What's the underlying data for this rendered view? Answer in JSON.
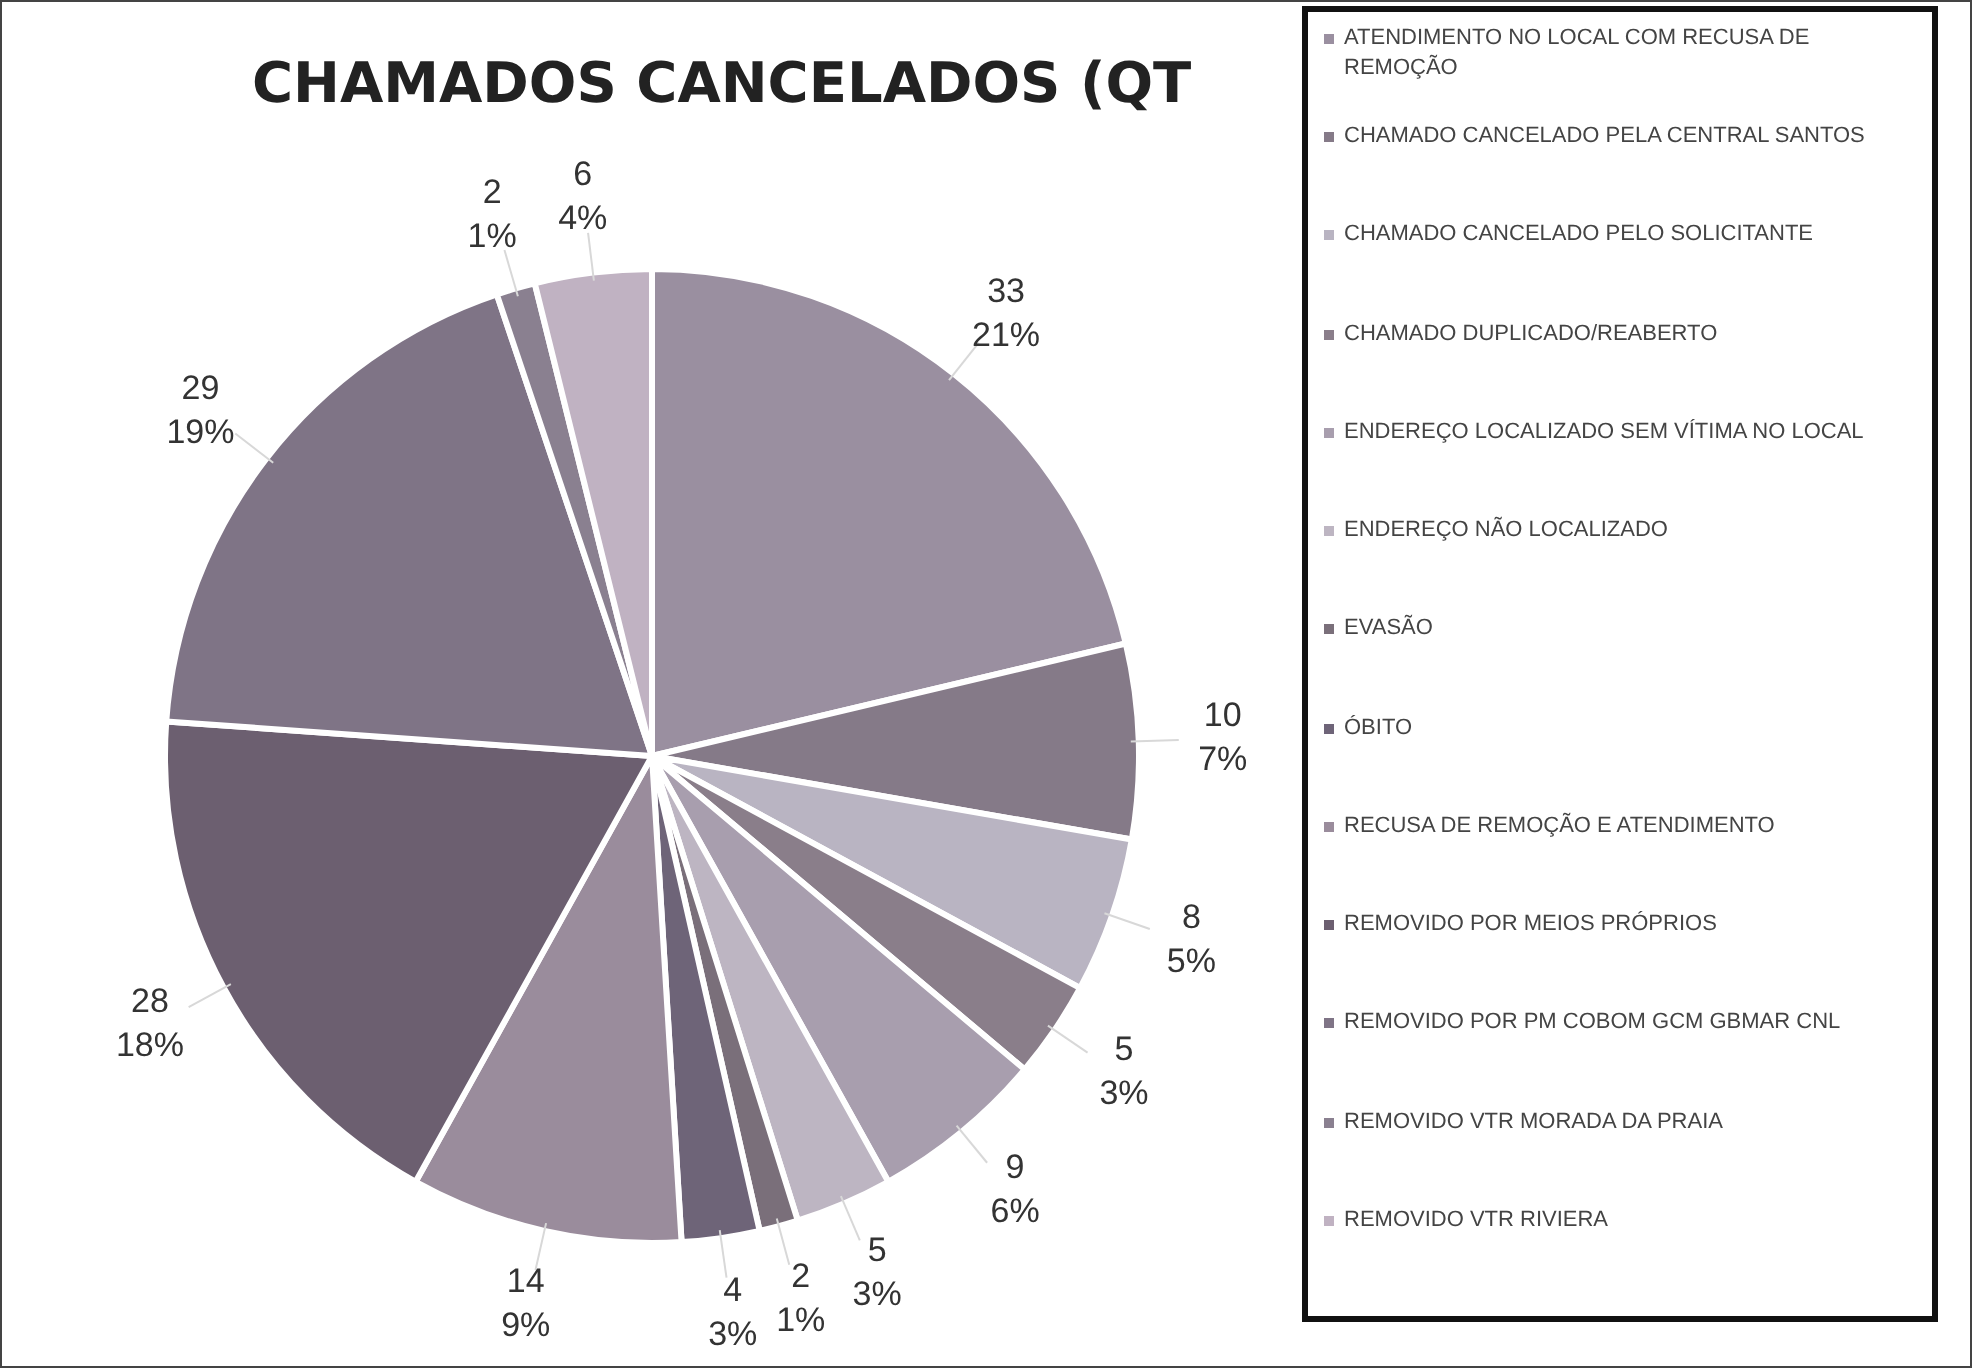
{
  "chart_data": {
    "type": "pie",
    "title": "CHAMADOS CANCELADOS (QT",
    "categories": [
      "ATENDIMENTO NO LOCAL COM RECUSA DE REMOÇÃO",
      "CHAMADO CANCELADO PELA CENTRAL SANTOS",
      "CHAMADO CANCELADO PELO SOLICITANTE",
      "CHAMADO DUPLICADO/REABERTO",
      "ENDEREÇO LOCALIZADO SEM VÍTIMA NO LOCAL",
      "ENDEREÇO NÃO LOCALIZADO",
      "EVASÃO",
      "ÓBITO",
      "RECUSA DE REMOÇÃO E ATENDIMENTO",
      "REMOVIDO POR MEIOS PRÓPRIOS",
      "REMOVIDO POR PM COBOM GCM GBMAR CNL",
      "REMOVIDO VTR MORADA DA PRAIA",
      "REMOVIDO VTR RIVIERA"
    ],
    "values": [
      33,
      10,
      8,
      5,
      9,
      5,
      2,
      4,
      14,
      28,
      29,
      2,
      6
    ],
    "value_labels": [
      "33\n21%",
      "10\n7%",
      "8\n5%",
      "5\n3%",
      "9\n6%",
      "5\n3%",
      "2\n1%",
      "4\n3%",
      "14\n9%",
      "28\n18%",
      "29\n19%",
      "2\n1%",
      "6\n4%"
    ],
    "colors": [
      "#9a8fa0",
      "#857a88",
      "#b9b4c2",
      "#8a7e8a",
      "#a89eae",
      "#bdb5c2",
      "#7a6f7a",
      "#6e6478",
      "#9a8c9c",
      "#6c5f70",
      "#7f7486",
      "#8a8090",
      "#c0b2c2"
    ],
    "legend": "right"
  }
}
